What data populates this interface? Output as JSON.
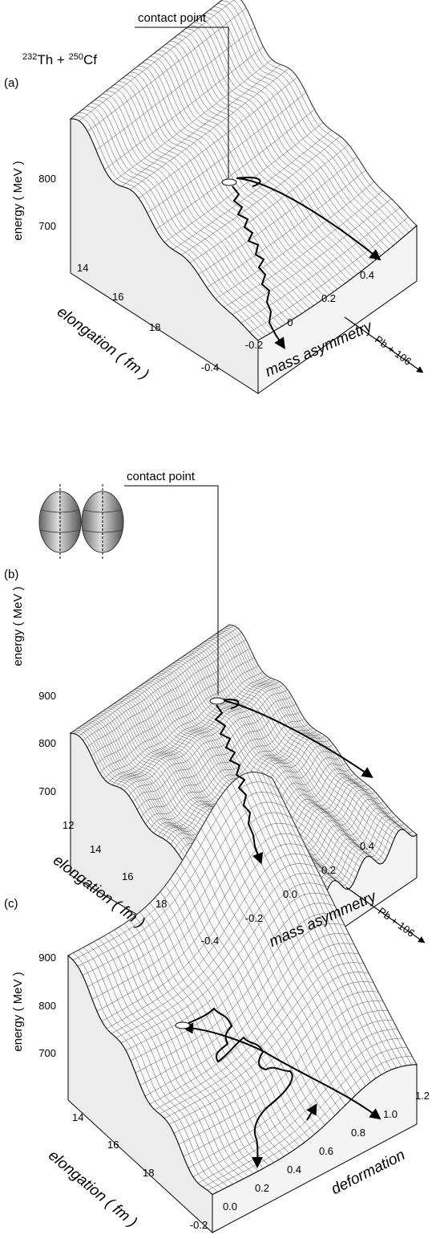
{
  "panels": [
    {
      "label": "(a)",
      "reaction": {
        "a1": "232",
        "e1": "Th + ",
        "a2": "250",
        "e2": "Cf"
      },
      "contact": "contact point",
      "y_title": "energy ( MeV )",
      "y_ticks": [
        "800",
        "700"
      ],
      "x_title": "elongation ( fm )",
      "x_ticks": [
        "14",
        "16",
        "18"
      ],
      "z_title": "mass asymmetry",
      "z_ticks": [
        "-0.4",
        "-0.2",
        "0",
        "0.2",
        "0.4"
      ],
      "z_note": "Pb + 106"
    },
    {
      "label": "(b)",
      "contact": "contact point",
      "y_title": "energy ( MeV )",
      "y_ticks": [
        "900",
        "800",
        "700"
      ],
      "x_title": "elongation ( fm )",
      "x_ticks": [
        "12",
        "14",
        "16",
        "18"
      ],
      "z_title": "mass asymmetry",
      "z_ticks": [
        "-0.4",
        "-0.2",
        "0.0",
        "0.2",
        "0.4"
      ],
      "z_note": "Pb + 106"
    },
    {
      "label": "(c)",
      "y_title": "energy ( MeV )",
      "y_ticks": [
        "900",
        "800",
        "700"
      ],
      "x_title": "elongation ( fm )",
      "x_ticks": [
        "14",
        "16",
        "18"
      ],
      "z_title": "deformation",
      "z_ticks": [
        "-0.2",
        "0.0",
        "0.2",
        "0.4",
        "0.6",
        "0.8",
        "1.0",
        "1.2"
      ]
    }
  ]
}
